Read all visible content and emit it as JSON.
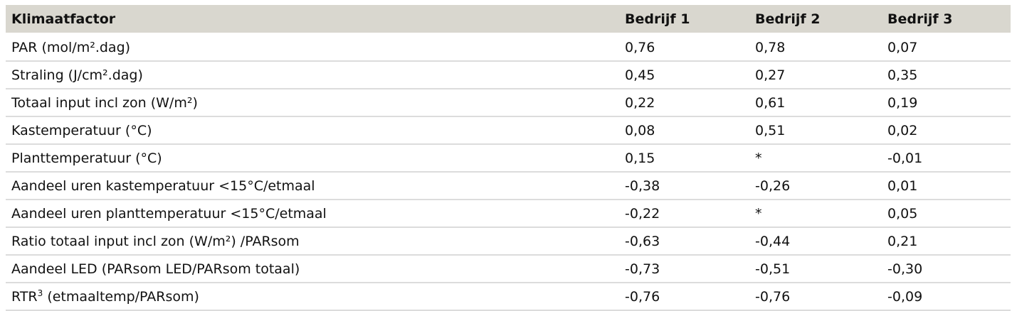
{
  "table": {
    "headers": [
      "Klimaatfactor",
      "Bedrijf 1",
      "Bedrijf 2",
      "Bedrijf 3"
    ],
    "rows": [
      {
        "factor": "PAR (mol/m².dag)",
        "b1": "0,76",
        "b2": "0,78",
        "b3": "0,07"
      },
      {
        "factor": "Straling (J/cm².dag)",
        "b1": "0,45",
        "b2": "0,27",
        "b3": "0,35"
      },
      {
        "factor": "Totaal input incl zon (W/m²)",
        "b1": "0,22",
        "b2": "0,61",
        "b3": "0,19"
      },
      {
        "factor": "Kastemperatuur (°C)",
        "b1": "0,08",
        "b2": "0,51",
        "b3": "0,02"
      },
      {
        "factor": "Planttemperatuur (°C)",
        "b1": "0,15",
        "b2": "*",
        "b3": "-0,01"
      },
      {
        "factor": "Aandeel uren kastemperatuur <15°C/etmaal",
        "b1": "-0,38",
        "b2": "-0,26",
        "b3": "0,01"
      },
      {
        "factor": "Aandeel uren planttemperatuur <15°C/etmaal",
        "b1": "-0,22",
        "b2": "*",
        "b3": "0,05"
      },
      {
        "factor": "Ratio totaal input incl zon (W/m²) /PARsom",
        "b1": "-0,63",
        "b2": "-0,44",
        "b3": "0,21"
      },
      {
        "factor": "Aandeel LED (PARsom LED/PARsom totaal)",
        "b1": "-0,73",
        "b2": "-0,51",
        "b3": "-0,30"
      },
      {
        "factor_main": "RTR",
        "factor_sup": "3",
        "factor_rest": " (etmaaltemp/PARsom)",
        "b1": "-0,76",
        "b2": "-0,76",
        "b3": "-0,09"
      }
    ]
  }
}
